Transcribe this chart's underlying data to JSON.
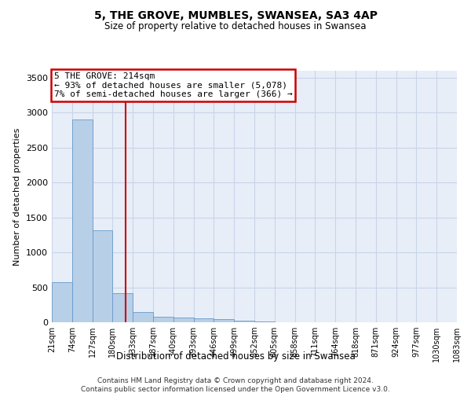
{
  "title": "5, THE GROVE, MUMBLES, SWANSEA, SA3 4AP",
  "subtitle": "Size of property relative to detached houses in Swansea",
  "xlabel": "Distribution of detached houses by size in Swansea",
  "ylabel": "Number of detached properties",
  "bin_labels": [
    "21sqm",
    "74sqm",
    "127sqm",
    "180sqm",
    "233sqm",
    "287sqm",
    "340sqm",
    "393sqm",
    "446sqm",
    "499sqm",
    "552sqm",
    "605sqm",
    "658sqm",
    "711sqm",
    "764sqm",
    "818sqm",
    "871sqm",
    "924sqm",
    "977sqm",
    "1030sqm",
    "1083sqm"
  ],
  "bar_values": [
    570,
    2900,
    1320,
    415,
    150,
    80,
    65,
    55,
    40,
    20,
    10,
    5,
    3,
    2,
    1,
    1,
    0,
    0,
    0,
    0
  ],
  "bar_color": "#b8cfe8",
  "bar_edge_color": "#6699cc",
  "grid_color": "#c8d4e8",
  "background_color": "#e8eef8",
  "red_line_x": 3.64,
  "annotation_text_line1": "5 THE GROVE: 214sqm",
  "annotation_text_line2": "← 93% of detached houses are smaller (5,078)",
  "annotation_text_line3": "7% of semi-detached houses are larger (366) →",
  "annotation_box_color": "#ffffff",
  "annotation_box_edge": "#cc0000",
  "ylim": [
    0,
    3600
  ],
  "yticks": [
    0,
    500,
    1000,
    1500,
    2000,
    2500,
    3000,
    3500
  ],
  "footer_line1": "Contains HM Land Registry data © Crown copyright and database right 2024.",
  "footer_line2": "Contains public sector information licensed under the Open Government Licence v3.0."
}
